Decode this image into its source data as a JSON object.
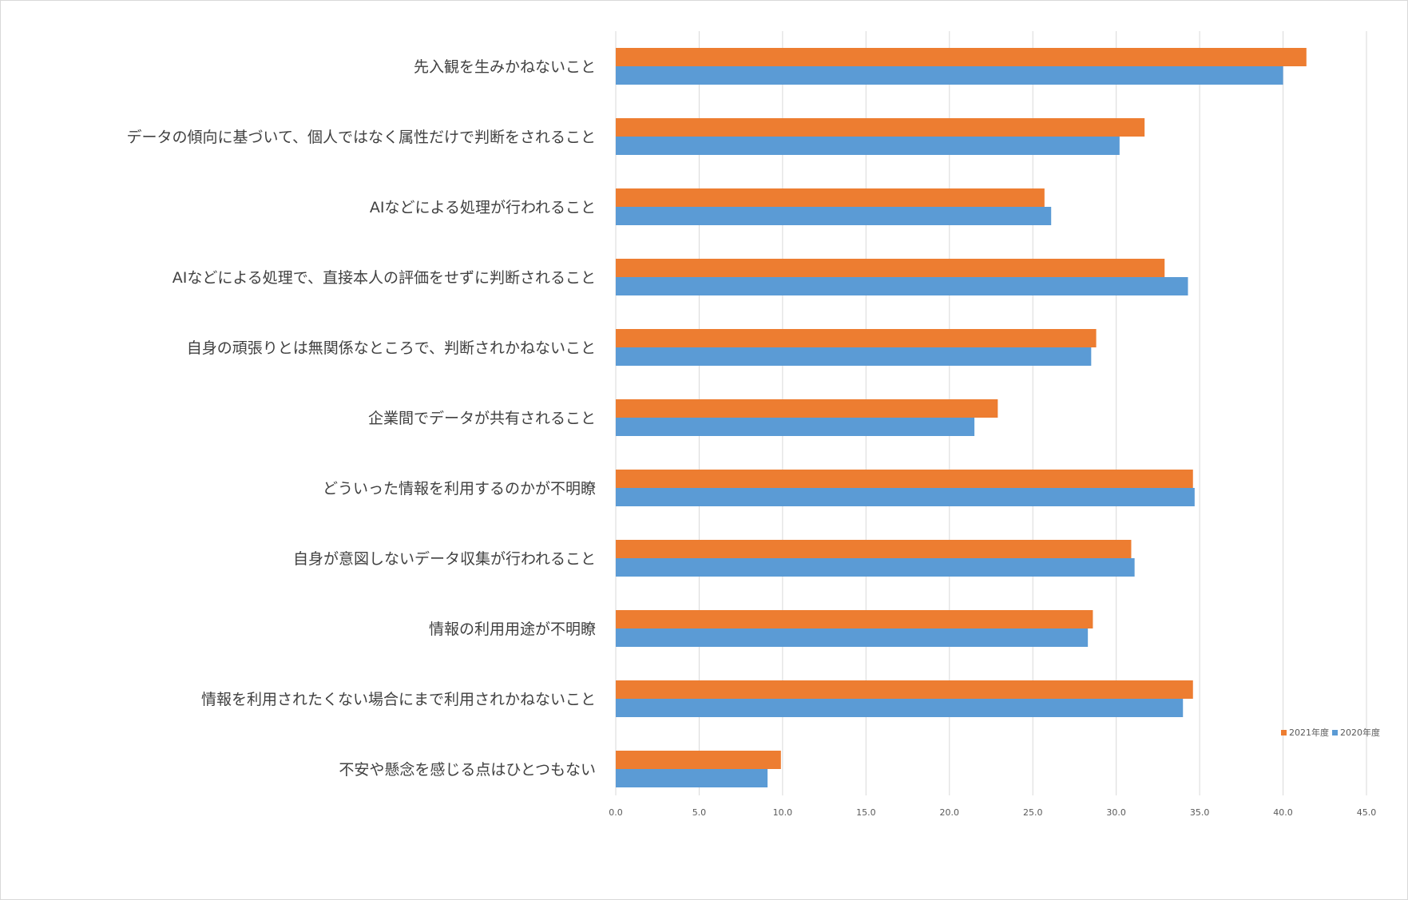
{
  "chart_data": {
    "type": "bar",
    "orientation": "horizontal",
    "categories": [
      "先入観を生みかねないこと",
      "データの傾向に基づいて、個人ではなく属性だけで判断をされること",
      "AIなどによる処理が行われること",
      "AIなどによる処理で、直接本人の評価をせずに判断されること",
      "自身の頑張りとは無関係なところで、判断されかねないこと",
      "企業間でデータが共有されること",
      "どういった情報を利用するのかが不明瞭",
      "自身が意図しないデータ収集が行われること",
      "情報の利用用途が不明瞭",
      "情報を利用されたくない場合にまで利用されかねないこと",
      "不安や懸念を感じる点はひとつもない"
    ],
    "series": [
      {
        "name": "2021年度",
        "color": "#ed7d31",
        "values": [
          41.4,
          31.7,
          25.7,
          32.9,
          28.8,
          22.9,
          34.6,
          30.9,
          28.6,
          34.6,
          9.9
        ]
      },
      {
        "name": "2020年度",
        "color": "#5b9bd5",
        "values": [
          40.0,
          30.2,
          26.1,
          34.3,
          28.5,
          21.5,
          34.7,
          31.1,
          28.3,
          34.0,
          9.1
        ]
      }
    ],
    "xlim": [
      0,
      45
    ],
    "xticks": [
      "0.0",
      "5.0",
      "10.0",
      "15.0",
      "20.0",
      "25.0",
      "30.0",
      "35.0",
      "40.0",
      "45.0"
    ],
    "grid": true,
    "legend": "right"
  }
}
